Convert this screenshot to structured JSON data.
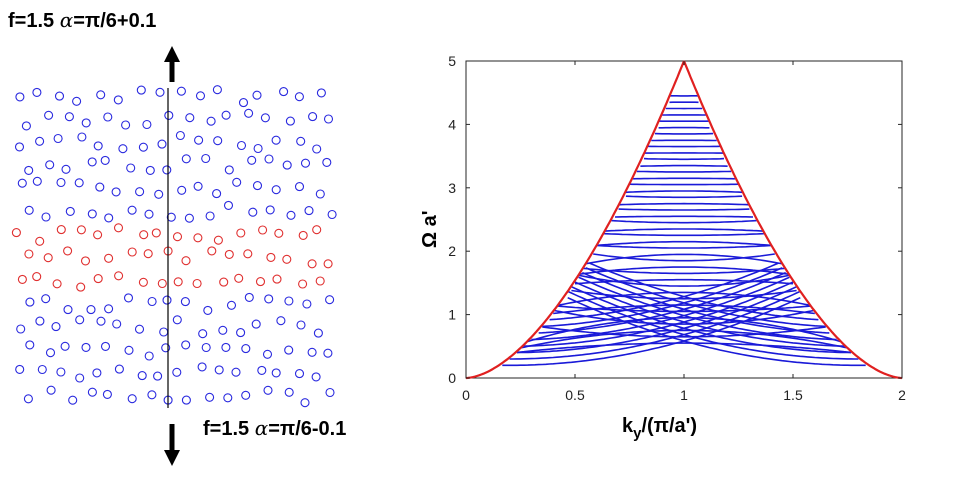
{
  "left_panel": {
    "top_label": {
      "prefix": "f=1.5 ",
      "alpha": "α",
      "suffix": "=π/6+0.1"
    },
    "bottom_label": {
      "prefix": "f=1.5 ",
      "alpha": "α",
      "suffix": "=π/6-0.1"
    },
    "colors": {
      "upper_lattice": "#2a2adf",
      "interface_rows": "#e03030",
      "line": "#000000"
    },
    "lattice_description_rows": {
      "upper_blue_rows": 6,
      "red_rows": 3,
      "lower_blue_rows": 5
    }
  },
  "chart_data": {
    "type": "line",
    "title": "",
    "xlabel": "k_y/(π/a')",
    "ylabel": "Ω a'",
    "xlim": [
      0,
      2
    ],
    "ylim": [
      0,
      5
    ],
    "xticks": [
      "0",
      "0.5",
      "1",
      "1.5",
      "2"
    ],
    "yticks": [
      "0",
      "1",
      "2",
      "3",
      "4",
      "5"
    ],
    "series": [
      {
        "name": "light cone",
        "color": "#e02020",
        "description": "pair of curves rising from (0,0) and (2,0) meeting above k_y=1 near Ω=5"
      },
      {
        "name": "bands",
        "color": "#1a1ad8",
        "description": "dense family of dispersive bands inside the cone"
      }
    ]
  }
}
